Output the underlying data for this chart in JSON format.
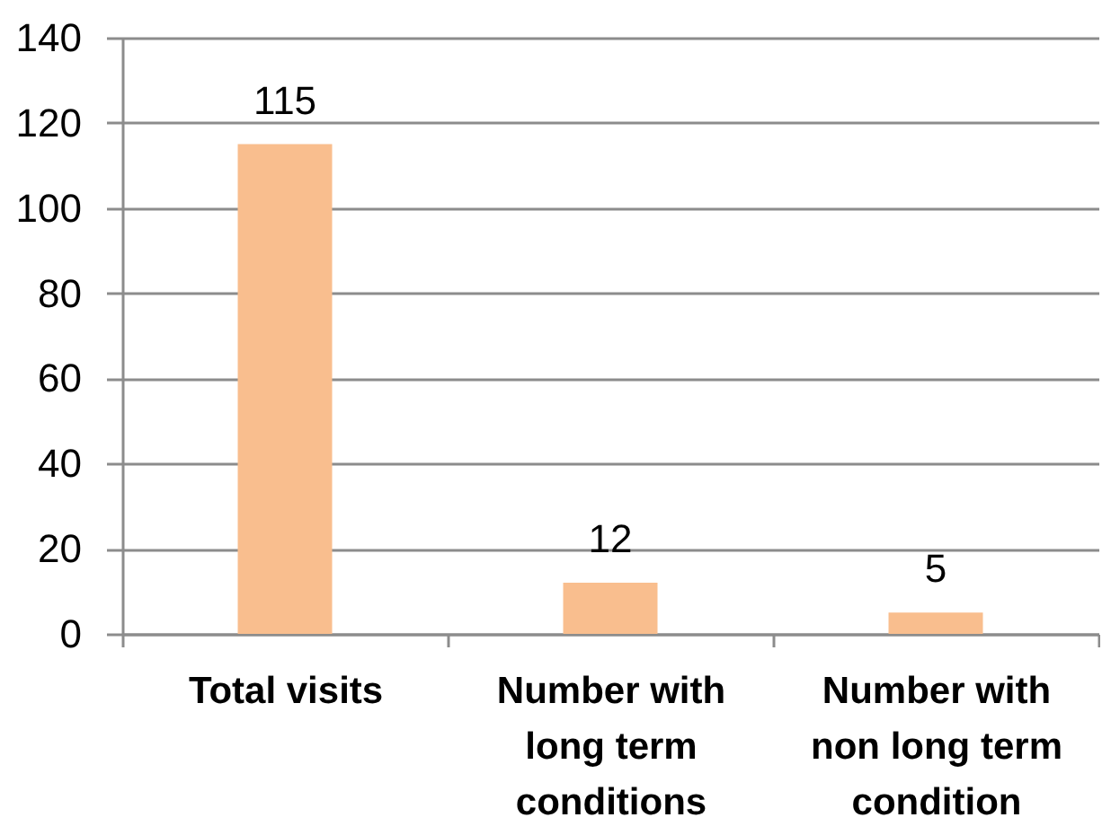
{
  "chart_data": {
    "type": "bar",
    "categories": [
      "Total visits",
      "Number with long term conditions",
      "Number with non long term condition"
    ],
    "values": [
      115,
      12,
      5
    ],
    "color": "#f9be8e",
    "ylim": [
      0,
      140
    ],
    "yticks": [
      0,
      20,
      40,
      60,
      80,
      100,
      120,
      140
    ],
    "grid": "y",
    "data_labels": true
  }
}
